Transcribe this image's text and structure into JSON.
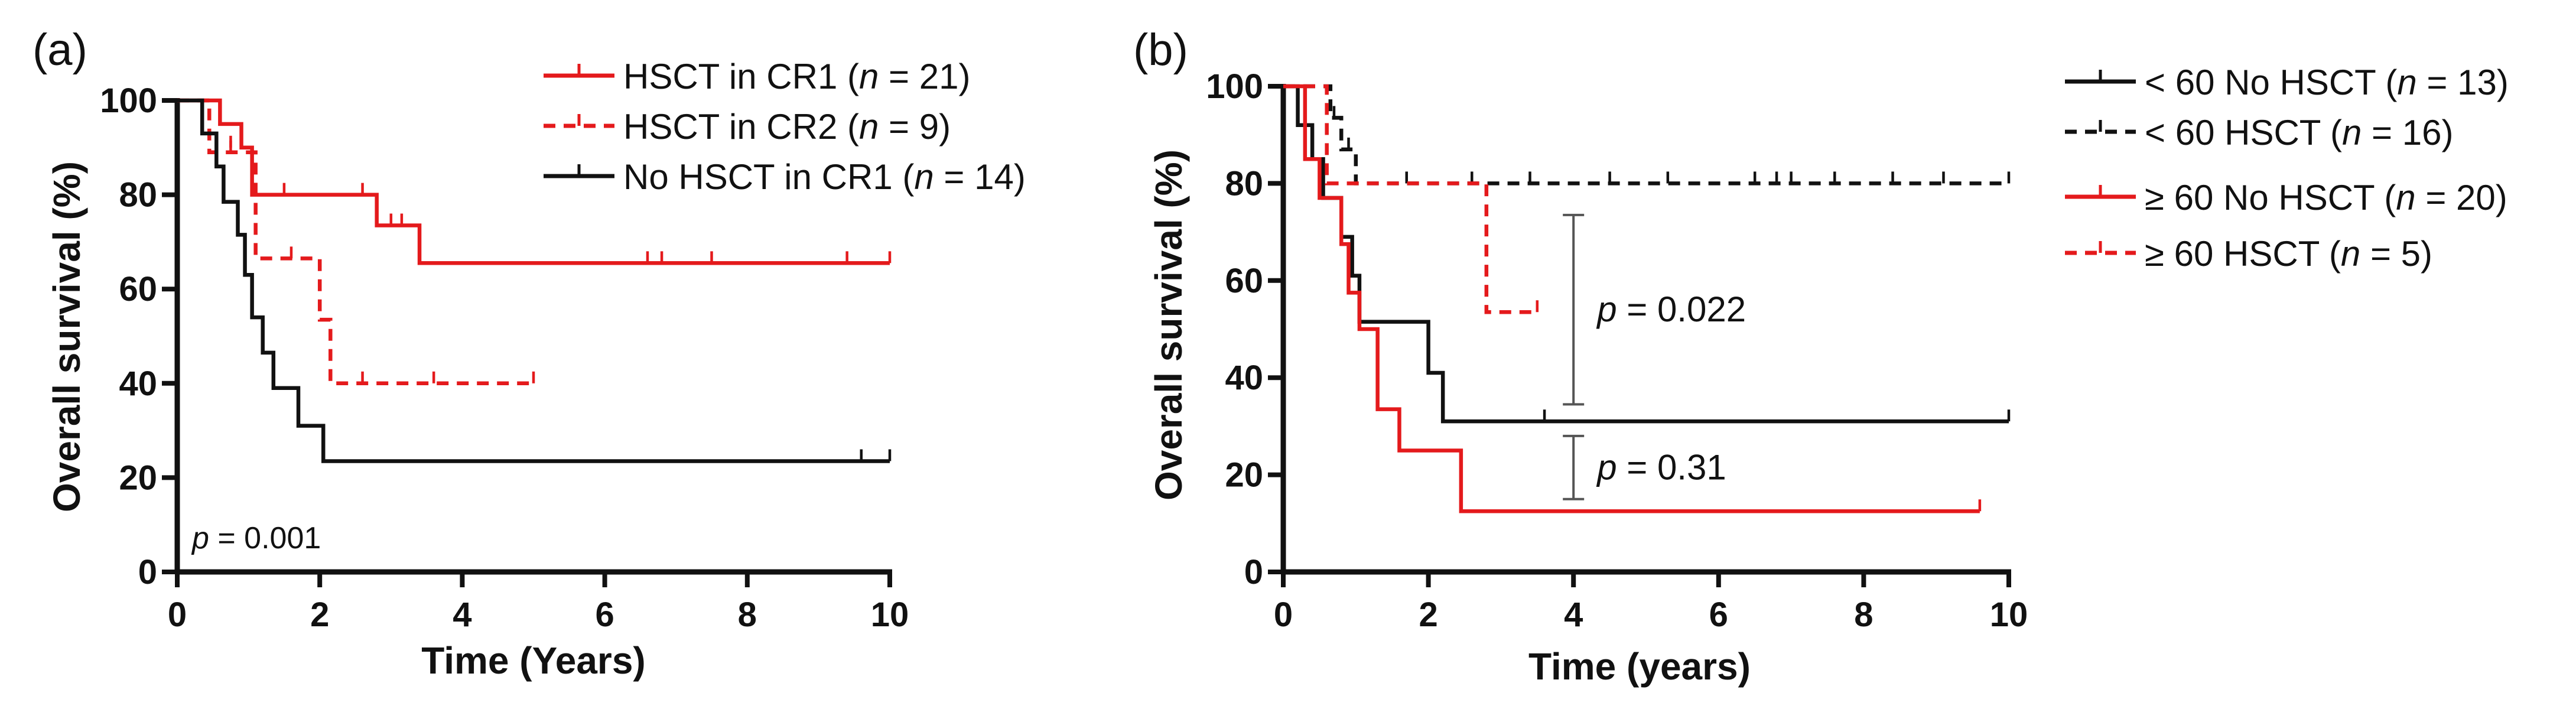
{
  "chart_data": [
    {
      "type": "line",
      "panel_label": "(a)",
      "xlabel": "Time (Years)",
      "ylabel": "Overall survival (%)",
      "xlim": [
        0,
        10
      ],
      "ylim": [
        0,
        100
      ],
      "xticks": [
        0,
        2,
        4,
        6,
        8,
        10
      ],
      "yticks": [
        0,
        20,
        40,
        60,
        80,
        100
      ],
      "legend_position": "top-right",
      "series": [
        {
          "name": "HSCT in CR1",
          "legend_label": "HSCT in CR1 (",
          "legend_n": "n",
          "legend_rest": " = 21)",
          "color": "#e41a1c",
          "dash": "solid",
          "steps": [
            [
              0,
              100
            ],
            [
              0.6,
              95
            ],
            [
              0.9,
              90
            ],
            [
              1.05,
              80
            ],
            [
              2.8,
              73.5
            ],
            [
              3.4,
              65.5
            ],
            [
              10,
              65.5
            ]
          ],
          "censors": [
            [
              0.75,
              90
            ],
            [
              1.5,
              80
            ],
            [
              2.6,
              80
            ],
            [
              3.0,
              73.5
            ],
            [
              3.15,
              73.5
            ],
            [
              6.6,
              65.5
            ],
            [
              6.8,
              65.5
            ],
            [
              7.5,
              65.5
            ],
            [
              9.4,
              65.5
            ],
            [
              10,
              65.5
            ]
          ]
        },
        {
          "name": "HSCT in CR2",
          "legend_label": "HSCT in CR2 (",
          "legend_n": "n",
          "legend_rest": " = 9)",
          "color": "#e41a1c",
          "dash": "dashed",
          "steps": [
            [
              0,
              100
            ],
            [
              0.45,
              89
            ],
            [
              1.1,
              66.5
            ],
            [
              2.0,
              53.5
            ],
            [
              2.15,
              40
            ],
            [
              5.0,
              40
            ]
          ],
          "censors": [
            [
              0.75,
              89
            ],
            [
              1.6,
              66.5
            ],
            [
              2.6,
              40
            ],
            [
              3.6,
              40
            ],
            [
              5.0,
              40
            ]
          ]
        },
        {
          "name": "No HSCT in CR1",
          "legend_label": "No HSCT in CR1 (",
          "legend_n": "n",
          "legend_rest": " = 14)",
          "color": "#111111",
          "dash": "solid",
          "steps": [
            [
              0,
              100
            ],
            [
              0.35,
              93
            ],
            [
              0.55,
              86
            ],
            [
              0.65,
              78.5
            ],
            [
              0.85,
              71.5
            ],
            [
              0.95,
              63
            ],
            [
              1.05,
              54
            ],
            [
              1.2,
              46.5
            ],
            [
              1.35,
              39
            ],
            [
              1.7,
              31
            ],
            [
              2.05,
              23.5
            ],
            [
              10,
              23.5
            ]
          ],
          "censors": [
            [
              9.6,
              23.5
            ],
            [
              10,
              23.5
            ]
          ]
        }
      ],
      "annotations": [
        {
          "text_prefix": "p",
          "text_rest": " = 0.001"
        }
      ]
    },
    {
      "type": "line",
      "panel_label": "(b)",
      "xlabel": "Time (years)",
      "ylabel": "Overall survival (%)",
      "xlim": [
        0,
        10
      ],
      "ylim": [
        0,
        100
      ],
      "xticks": [
        0,
        2,
        4,
        6,
        8,
        10
      ],
      "yticks": [
        0,
        20,
        40,
        60,
        80,
        100
      ],
      "legend_position": "top-right",
      "series": [
        {
          "name": "< 60 No HSCT",
          "legend_label": "< 60 No HSCT (",
          "legend_n": "n",
          "legend_rest": " = 13)",
          "color": "#111111",
          "dash": "solid",
          "steps": [
            [
              0,
              100
            ],
            [
              0.2,
              92
            ],
            [
              0.4,
              85
            ],
            [
              0.55,
              77
            ],
            [
              0.8,
              69
            ],
            [
              0.95,
              61
            ],
            [
              1.05,
              51.5
            ],
            [
              2.0,
              41
            ],
            [
              2.2,
              31
            ],
            [
              10,
              31
            ]
          ],
          "censors": [
            [
              3.6,
              31
            ],
            [
              10,
              31
            ]
          ]
        },
        {
          "name": "< 60 HSCT",
          "legend_label": "< 60 HSCT (",
          "legend_n": "n",
          "legend_rest": " = 16)",
          "color": "#111111",
          "dash": "dashed",
          "steps": [
            [
              0,
              100
            ],
            [
              0.65,
              93.5
            ],
            [
              0.8,
              87
            ],
            [
              1.0,
              80
            ],
            [
              10,
              80
            ]
          ],
          "censors": [
            [
              0.7,
              93.5
            ],
            [
              0.9,
              87
            ],
            [
              1.7,
              80
            ],
            [
              2.6,
              80
            ],
            [
              3.4,
              80
            ],
            [
              4.5,
              80
            ],
            [
              5.3,
              80
            ],
            [
              6.5,
              80
            ],
            [
              6.8,
              80
            ],
            [
              7.0,
              80
            ],
            [
              7.6,
              80
            ],
            [
              8.4,
              80
            ],
            [
              9.1,
              80
            ],
            [
              10,
              80
            ]
          ]
        },
        {
          "name": "≥ 60 No HSCT",
          "legend_label": "≥ 60 No HSCT (",
          "legend_n": "n",
          "legend_rest": " = 20)",
          "color": "#e41a1c",
          "dash": "solid",
          "steps": [
            [
              0,
              100
            ],
            [
              0.3,
              85
            ],
            [
              0.5,
              77
            ],
            [
              0.8,
              67.5
            ],
            [
              0.9,
              57.5
            ],
            [
              1.05,
              50
            ],
            [
              1.3,
              43.5
            ],
            [
              1.3,
              33.5
            ],
            [
              1.6,
              25
            ],
            [
              2.45,
              12.5
            ],
            [
              9.6,
              12.5
            ]
          ],
          "censors": [
            [
              1.6,
              25
            ],
            [
              9.6,
              12.5
            ]
          ]
        },
        {
          "name": "≥ 60 HSCT",
          "legend_label": "≥ 60 HSCT (",
          "legend_n": "n",
          "legend_rest": " = 5)",
          "color": "#e41a1c",
          "dash": "dashed",
          "steps": [
            [
              0,
              100
            ],
            [
              0.6,
              80
            ],
            [
              2.8,
              53.5
            ],
            [
              3.5,
              53.5
            ]
          ],
          "censors": [
            [
              3.5,
              53.5
            ]
          ]
        }
      ],
      "comparisons": [
        {
          "label_prefix": "p",
          "label_rest": " = 0.022",
          "from": 34.5,
          "to": 73.5
        },
        {
          "label_prefix": "p",
          "label_rest": " = 0.31",
          "from": 15,
          "to": 28
        }
      ]
    }
  ]
}
